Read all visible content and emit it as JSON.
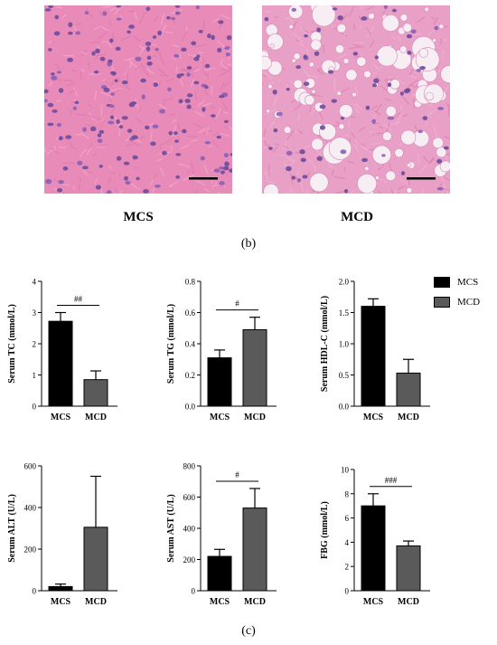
{
  "figure": {
    "micrographs": [
      {
        "group": "MCS"
      },
      {
        "group": "MCD"
      }
    ],
    "panel_b_label": "(b)",
    "panel_c_label": "(c)"
  },
  "legend": [
    {
      "name": "MCS",
      "color": "#000000"
    },
    {
      "name": "MCD",
      "color": "#5a5a5a"
    }
  ],
  "chart_data": [
    {
      "type": "bar",
      "ylabel": "Serum TC (mmol/L)",
      "categories": [
        "MCS",
        "MCD"
      ],
      "values": [
        2.72,
        0.85
      ],
      "errors": [
        0.28,
        0.28
      ],
      "ylim": [
        0,
        4
      ],
      "yticks": [
        "0",
        "1",
        "2",
        "3",
        "4"
      ],
      "significance": "##"
    },
    {
      "type": "bar",
      "ylabel": "Serum TG (mmol/L)",
      "categories": [
        "MCS",
        "MCD"
      ],
      "values": [
        0.31,
        0.49
      ],
      "errors": [
        0.05,
        0.08
      ],
      "ylim": [
        0,
        0.8
      ],
      "yticks": [
        "0.0",
        "0.2",
        "0.4",
        "0.6",
        "0.8"
      ],
      "significance": "#"
    },
    {
      "type": "bar",
      "ylabel": "Serum HDL-C (mmol/L)",
      "categories": [
        "MCS",
        "MCD"
      ],
      "values": [
        1.6,
        0.53
      ],
      "errors": [
        0.12,
        0.22
      ],
      "ylim": [
        0,
        2.0
      ],
      "yticks": [
        "0.0",
        "0.5",
        "1.0",
        "1.5",
        "2.0"
      ],
      "significance": ""
    },
    {
      "type": "bar",
      "ylabel": "Serum ALT (U/L)",
      "categories": [
        "MCS",
        "MCD"
      ],
      "values": [
        20,
        305
      ],
      "errors": [
        12,
        245
      ],
      "ylim": [
        0,
        600
      ],
      "yticks": [
        "0",
        "200",
        "400",
        "600"
      ],
      "significance": ""
    },
    {
      "type": "bar",
      "ylabel": "Serum AST (U/L)",
      "categories": [
        "MCS",
        "MCD"
      ],
      "values": [
        220,
        530
      ],
      "errors": [
        45,
        125
      ],
      "ylim": [
        0,
        800
      ],
      "yticks": [
        "0",
        "200",
        "400",
        "600",
        "800"
      ],
      "significance": "#"
    },
    {
      "type": "bar",
      "ylabel": "FBG (mmol/L)",
      "categories": [
        "MCS",
        "MCD"
      ],
      "values": [
        7.0,
        3.7
      ],
      "errors": [
        1.0,
        0.4
      ],
      "ylim": [
        0,
        10
      ],
      "yticks": [
        "0",
        "2",
        "4",
        "6",
        "8",
        "10"
      ],
      "significance": "###"
    }
  ]
}
